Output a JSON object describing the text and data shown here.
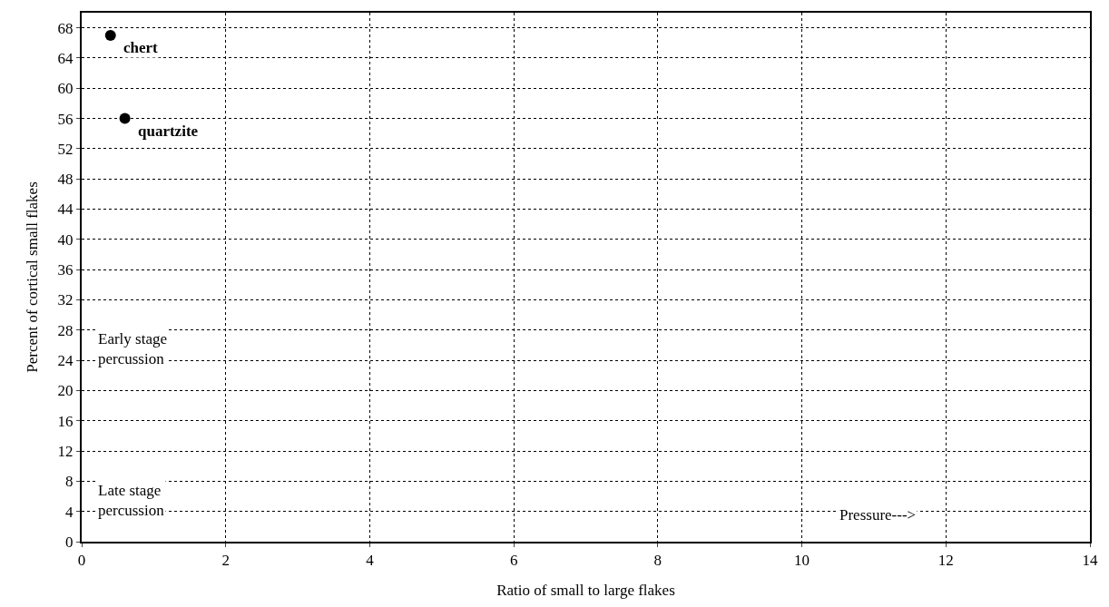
{
  "chart_data": {
    "type": "scatter",
    "xlabel": "Ratio of small to large flakes",
    "ylabel": "Percent of cortical small flakes",
    "x": [
      0.4,
      0.6
    ],
    "values": [
      67,
      56
    ],
    "color": "#000000",
    "marker": "circle",
    "xlim": [
      0,
      14
    ],
    "xticks": [
      0,
      2,
      4,
      6,
      8,
      10,
      12,
      14
    ],
    "ylim": [
      0,
      70
    ],
    "yticks": [
      0,
      4,
      8,
      12,
      16,
      20,
      24,
      28,
      32,
      36,
      40,
      44,
      48,
      52,
      56,
      60,
      64,
      68
    ],
    "grid": true,
    "annotations": [
      {
        "text": "chert",
        "x": 0.4,
        "y": 67
      },
      {
        "text": "quartzite",
        "x": 0.6,
        "y": 56
      },
      "Early stage\npercussion",
      "Late stage\npercussion",
      "Pressure--->"
    ]
  }
}
